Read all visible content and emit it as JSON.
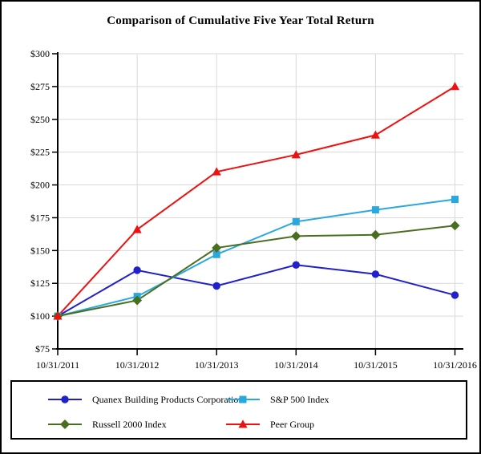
{
  "page": {
    "title": "Comparison of Cumulative Five Year Total Return"
  },
  "chart_data": {
    "type": "line",
    "title": "Comparison of Cumulative Five Year Total Return",
    "x_categories": [
      "10/31/2011",
      "10/31/2012",
      "10/31/2013",
      "10/31/2014",
      "10/31/2015",
      "10/31/2016"
    ],
    "y_axis": {
      "min": 75,
      "max": 300,
      "step": 25,
      "tick_labels": [
        "$75",
        "$100",
        "$125",
        "$150",
        "$175",
        "$200",
        "$225",
        "$250",
        "$275",
        "$300"
      ]
    },
    "grid": true,
    "legend_position": "boxed-below-plot",
    "series": [
      {
        "name": "Quanex Building Products Corporation",
        "marker": "circle",
        "color": "#2020cc",
        "values": [
          100,
          135,
          123,
          139,
          132,
          116
        ]
      },
      {
        "name": "S&P 500 Index",
        "marker": "square",
        "color": "#29a8e0",
        "values": [
          100,
          115,
          147,
          172,
          181,
          189
        ]
      },
      {
        "name": "Russell 2000 Index",
        "marker": "diamond",
        "color": "#4a6e1f",
        "values": [
          100,
          112,
          152,
          161,
          162,
          169
        ]
      },
      {
        "name": "Peer Group",
        "marker": "triangle",
        "color": "#ee1111",
        "values": [
          100,
          166,
          210,
          223,
          238,
          275
        ]
      }
    ]
  },
  "colors": {
    "background": "#ffffff",
    "gridline": "#d9d9d9",
    "axis": "#000000",
    "border": "#000000",
    "text": "#000000"
  }
}
